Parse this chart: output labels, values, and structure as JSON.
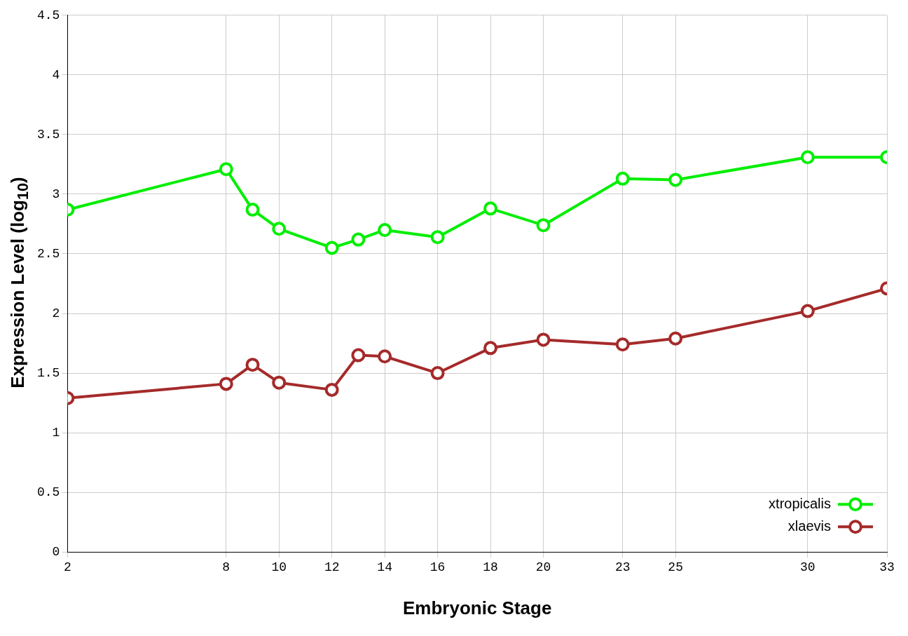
{
  "chart_data": {
    "type": "line",
    "xlabel": "Embryonic Stage",
    "ylabel": "Expression Level (log$_{10}$)",
    "xlim": [
      2,
      33
    ],
    "xticks": [
      2,
      8,
      10,
      12,
      14,
      16,
      18,
      20,
      23,
      25,
      30,
      33
    ],
    "ylim": [
      0,
      4.5
    ],
    "yticks": [
      0,
      0.5,
      1,
      1.5,
      2,
      2.5,
      3,
      3.5,
      4,
      4.5
    ],
    "x": [
      2,
      8,
      9,
      10,
      12,
      13,
      14,
      16,
      18,
      20,
      23,
      25,
      30,
      33
    ],
    "series": [
      {
        "name": "xtropicalis",
        "color": "#00ee00",
        "values": [
          2.87,
          3.21,
          2.87,
          2.71,
          2.55,
          2.62,
          2.7,
          2.64,
          2.88,
          2.74,
          3.13,
          3.12,
          3.31,
          3.31
        ]
      },
      {
        "name": "xlaevis",
        "color": "#a52a2a",
        "values": [
          1.29,
          1.41,
          1.57,
          1.42,
          1.36,
          1.65,
          1.64,
          1.5,
          1.71,
          1.78,
          1.74,
          1.79,
          2.02,
          2.21
        ]
      }
    ],
    "grid": true,
    "legend": "bottom right",
    "marker": "circle",
    "line_style": "solid"
  }
}
